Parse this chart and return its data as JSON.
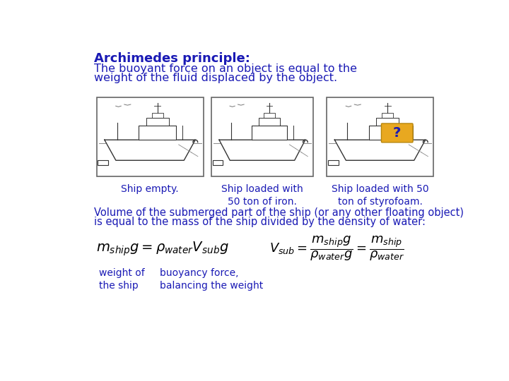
{
  "bg_color": "#ffffff",
  "title": "Archimedes principle:",
  "title_color": "#1a1ab5",
  "title_fontsize": 13,
  "subtitle_line1": "The buoyant force on an object is equal to the",
  "subtitle_line2": "weight of the fluid displaced by the object.",
  "subtitle_color": "#1a1ab5",
  "subtitle_fontsize": 11.5,
  "caption1": "Ship empty.",
  "caption2": "Ship loaded with\n50 ton of iron.",
  "caption3": "Ship loaded with 50\nton of styrofoam.",
  "caption_color": "#1a1ab5",
  "caption_fontsize": 10,
  "volume_line1": "Volume of the submerged part of the ship (or any other floating object)",
  "volume_line2": "is equal to the mass of the ship divided by the density of water:",
  "volume_color": "#1a1ab5",
  "volume_fontsize": 10.5,
  "label1": "weight of\nthe ship",
  "label2": "buoyancy force,\nbalancing the weight",
  "label_color": "#1a1ab5",
  "label_fontsize": 10,
  "box_color": "#e8a820",
  "question_color": "#1a1ab5",
  "math_color": "#000000",
  "eq1_fontsize": 14,
  "eq2_fontsize": 13
}
